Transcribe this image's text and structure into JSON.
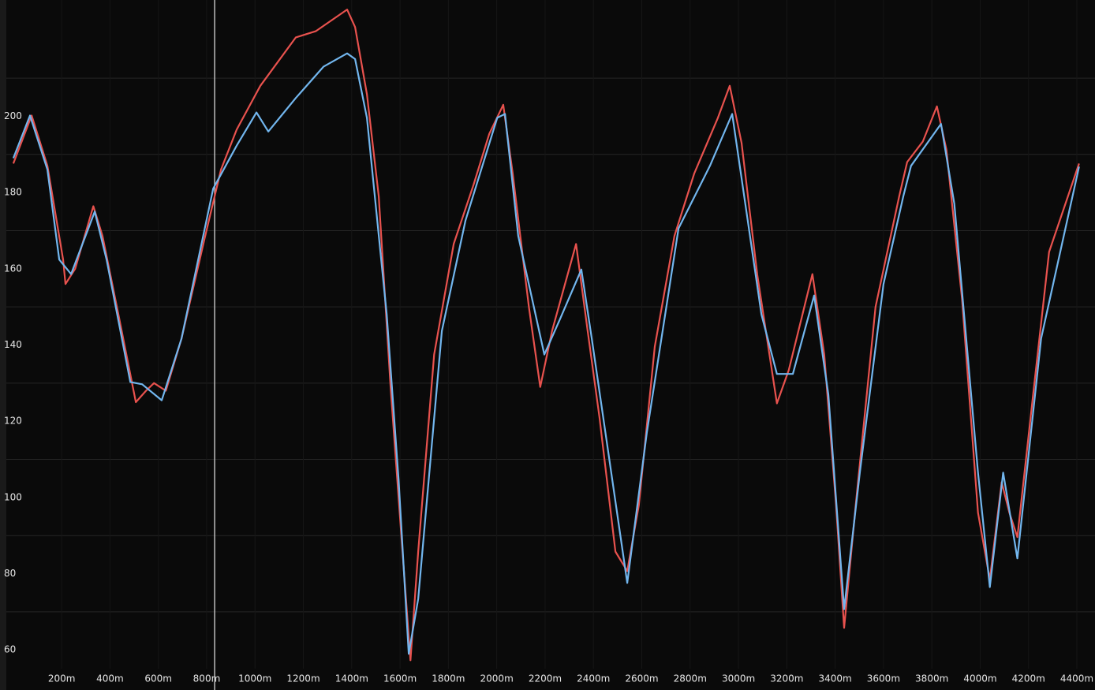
{
  "chart_data": {
    "type": "line",
    "xlim": [
      -55,
      4475
    ],
    "ylim": [
      49.5,
      230.5
    ],
    "yticks": [
      60,
      80,
      100,
      120,
      140,
      160,
      180,
      200
    ],
    "ygrid": [
      70,
      90,
      110,
      130,
      150,
      170,
      190,
      210
    ],
    "xticks": [
      {
        "value": 200,
        "label": "200m"
      },
      {
        "value": 400,
        "label": "400m"
      },
      {
        "value": 600,
        "label": "600m"
      },
      {
        "value": 800,
        "label": "800m"
      },
      {
        "value": 1000,
        "label": "1000m"
      },
      {
        "value": 1200,
        "label": "1200m"
      },
      {
        "value": 1400,
        "label": "1400m"
      },
      {
        "value": 1600,
        "label": "1600m"
      },
      {
        "value": 1800,
        "label": "1800m"
      },
      {
        "value": 2000,
        "label": "2000m"
      },
      {
        "value": 2200,
        "label": "2200m"
      },
      {
        "value": 2400,
        "label": "2400m"
      },
      {
        "value": 2600,
        "label": "2600m"
      },
      {
        "value": 2800,
        "label": "2800m"
      },
      {
        "value": 3000,
        "label": "3000m"
      },
      {
        "value": 3200,
        "label": "3200m"
      },
      {
        "value": 3400,
        "label": "3400m"
      },
      {
        "value": 3600,
        "label": "3600m"
      },
      {
        "value": 3800,
        "label": "3800m"
      },
      {
        "value": 4000,
        "label": "4000m"
      },
      {
        "value": 4200,
        "label": "4200m"
      },
      {
        "value": 4400,
        "label": "4400m"
      }
    ],
    "cursor_x": 833,
    "series": [
      {
        "color": "#e8524e",
        "x": [
          0,
          76,
          141,
          206,
          216,
          256,
          331,
          369,
          435,
          507,
          549,
          582,
          631,
          696,
          794,
          859,
          924,
          1022,
          1169,
          1251,
          1381,
          1414,
          1463,
          1512,
          1561,
          1610,
          1643,
          1675,
          1741,
          1822,
          1904,
          1969,
          2027,
          2066,
          2133,
          2180,
          2229,
          2328,
          2376,
          2425,
          2491,
          2540,
          2588,
          2654,
          2735,
          2817,
          2915,
          2964,
          3013,
          3078,
          3159,
          3208,
          3306,
          3355,
          3404,
          3437,
          3485,
          3567,
          3665,
          3698,
          3763,
          3821,
          3860,
          3925,
          3991,
          4040,
          4089,
          4121,
          4154,
          4219,
          4285,
          4409
        ],
        "values": [
          187.6,
          200.2,
          187,
          162.4,
          156,
          160,
          176.4,
          168.6,
          148,
          125,
          128,
          130,
          128,
          141.7,
          168.6,
          186,
          196.5,
          208,
          220.7,
          222.3,
          228,
          223.4,
          205.8,
          179,
          129,
          85.8,
          57.3,
          85.8,
          137.5,
          166.5,
          182,
          195.4,
          203,
          185,
          150,
          129,
          143.7,
          166.5,
          143.7,
          121,
          85.8,
          80.7,
          98,
          139.6,
          168.6,
          185,
          199.6,
          208,
          193,
          158.3,
          124.7,
          133.4,
          158.6,
          137.5,
          98,
          65.8,
          98,
          150,
          179,
          188,
          193.4,
          202.6,
          191.3,
          152,
          96,
          78.5,
          104,
          96,
          89.6,
          127,
          164.4,
          187.6
        ]
      },
      {
        "color": "#72b6ee",
        "x": [
          0,
          69,
          141,
          190,
          239,
          337,
          386,
          484,
          533,
          614,
          696,
          827,
          924,
          1006,
          1055,
          1169,
          1283,
          1381,
          1414,
          1463,
          1545,
          1594,
          1636,
          1675,
          1773,
          1871,
          2002,
          2034,
          2089,
          2197,
          2262,
          2350,
          2393,
          2540,
          2621,
          2752,
          2882,
          2974,
          3095,
          3159,
          3225,
          3313,
          3372,
          3437,
          3502,
          3600,
          3682,
          3714,
          3838,
          3893,
          3991,
          4040,
          4095,
          4154,
          4252,
          4409
        ],
        "values": [
          189,
          200.2,
          186,
          162.4,
          158.6,
          175,
          162.4,
          130.3,
          129.7,
          125.5,
          141.7,
          181,
          192.3,
          201,
          196,
          204.8,
          213,
          216.5,
          215,
          199.6,
          148,
          104.5,
          59,
          73.4,
          143.7,
          172.7,
          199.6,
          200.6,
          168.6,
          137.5,
          146.8,
          159.8,
          141.7,
          77.6,
          117,
          170.6,
          187,
          200.6,
          148,
          132.4,
          132.4,
          153,
          127,
          70.7,
          106.5,
          156,
          179,
          187,
          198,
          177,
          106.5,
          76.5,
          106.5,
          84,
          141.7,
          186.8
        ]
      }
    ]
  }
}
